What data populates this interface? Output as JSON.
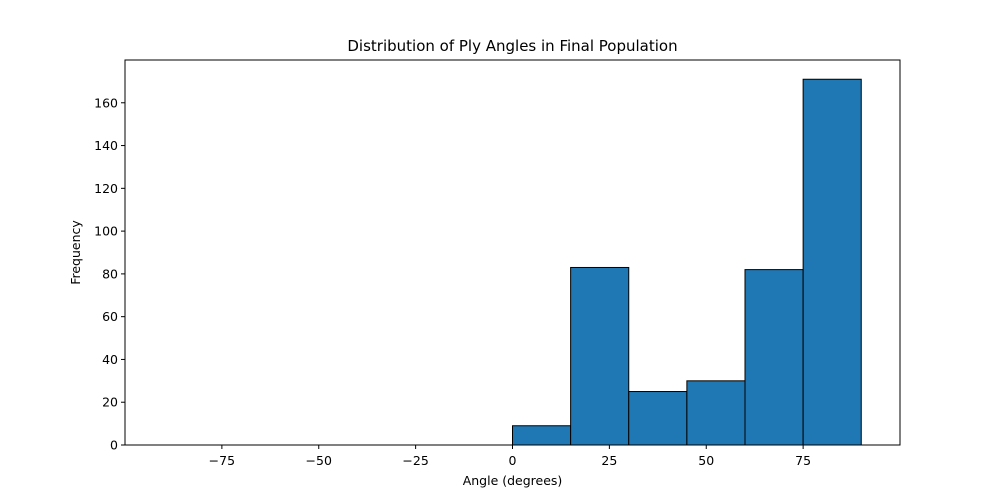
{
  "chart_data": {
    "type": "bar",
    "title": "Distribution of Ply Angles in Final Population",
    "xlabel": "Angle (degrees)",
    "ylabel": "Frequency",
    "bin_edges": [
      -90,
      -75,
      -60,
      -45,
      -30,
      -15,
      0,
      15,
      30,
      45,
      60,
      75,
      90
    ],
    "values": [
      0,
      0,
      0,
      0,
      0,
      0,
      9,
      83,
      25,
      30,
      82,
      171
    ],
    "xlim": [
      -100,
      100
    ],
    "ylim": [
      0,
      180
    ],
    "xticks": [
      -75,
      -50,
      -25,
      0,
      25,
      50,
      75
    ],
    "xtick_labels": [
      "−75",
      "−50",
      "−25",
      "0",
      "25",
      "50",
      "75"
    ],
    "yticks": [
      0,
      20,
      40,
      60,
      80,
      100,
      120,
      140,
      160
    ],
    "ytick_labels": [
      "0",
      "20",
      "40",
      "60",
      "80",
      "100",
      "120",
      "140",
      "160"
    ],
    "bar_color": "#1f77b4",
    "edge_color": "#000000",
    "grid": false,
    "legend": "none"
  }
}
